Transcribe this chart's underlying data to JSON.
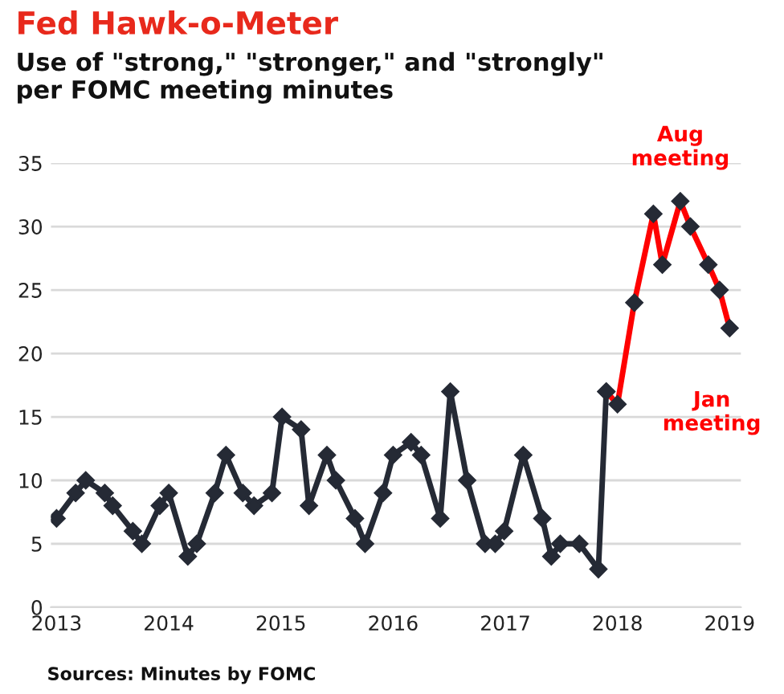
{
  "chart_data": {
    "type": "line",
    "title": "Fed Hawk-o-Meter",
    "subtitle": "Use of \"strong,\" \"stronger,\" and \"strongly\"\nper FOMC meeting minutes",
    "annotations": [
      {
        "text": "Aug\nmeeting",
        "x": 2018.56,
        "y": 32
      },
      {
        "text": "Jan\nmeeting",
        "x": 2019.0,
        "y": 22
      },
      "Sources: Minutes by FOMC"
    ],
    "series": [
      {
        "color": "#252a35",
        "x": [
          2013.0,
          2013.17,
          2013.26,
          2013.43,
          2013.5,
          2013.68,
          2013.76,
          2013.92,
          2014.0,
          2014.17,
          2014.25,
          2014.41,
          2014.51,
          2014.66,
          2014.76,
          2014.92,
          2015.01,
          2015.18,
          2015.25,
          2015.41,
          2015.49,
          2015.66,
          2015.75,
          2015.91,
          2016.0,
          2016.16,
          2016.25,
          2016.42,
          2016.51,
          2016.66,
          2016.82,
          2016.91,
          2016.99,
          2017.16,
          2017.33,
          2017.41,
          2017.49,
          2017.66,
          2017.83,
          2017.9
        ],
        "values": [
          7,
          9,
          10,
          9,
          8,
          6,
          5,
          8,
          9,
          4,
          5,
          9,
          12,
          9,
          8,
          9,
          15,
          14,
          8,
          12,
          10,
          7,
          5,
          9,
          12,
          13,
          12,
          7,
          17,
          10,
          5,
          5,
          6,
          12,
          7,
          4,
          5,
          5,
          3,
          17
        ]
      },
      {
        "color": "#ff0000",
        "x": [
          2017.9,
          2018.0,
          2018.15,
          2018.32,
          2018.4,
          2018.56,
          2018.65,
          2018.81,
          2018.91,
          2019.0
        ],
        "values": [
          17,
          16,
          24,
          31,
          27,
          32,
          30,
          27,
          25,
          22
        ]
      }
    ],
    "xlim": [
      2012.95,
      2019.1
    ],
    "xticks": [
      2013,
      2014,
      2015,
      2016,
      2017,
      2018,
      2019
    ],
    "ylim": [
      0,
      35
    ],
    "yticks": [
      0,
      5,
      10,
      15,
      20,
      25,
      30,
      35
    ],
    "grid": "y",
    "marker": "diamond",
    "line_style": "solid"
  }
}
